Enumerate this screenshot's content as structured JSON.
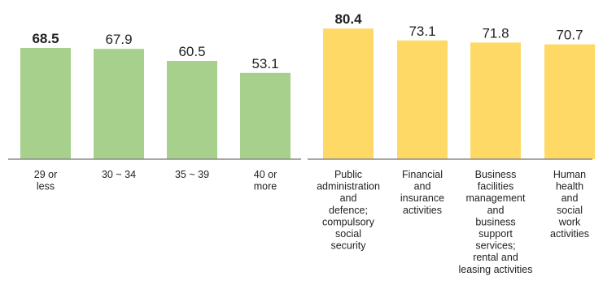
{
  "chart_data": [
    {
      "type": "bar",
      "categories": [
        [
          "29 or",
          "less"
        ],
        [
          "30 ~ 34"
        ],
        [
          "35 ~ 39"
        ],
        [
          "40 or",
          "more"
        ]
      ],
      "values": [
        68.5,
        67.9,
        60.5,
        53.1
      ],
      "value_labels": [
        "68.5",
        "67.9",
        "60.5",
        "53.1"
      ],
      "bold_index": 0,
      "color": "#a8d08d",
      "ylim": [
        0,
        100
      ]
    },
    {
      "type": "bar",
      "categories": [
        [
          "Public",
          "administration",
          "and",
          "defence;",
          "compulsory",
          "social",
          "security"
        ],
        [
          "Financial",
          "and",
          "insurance",
          "activities"
        ],
        [
          "Business",
          "facilities",
          "management",
          "and",
          "business",
          "support",
          "services;",
          "rental and",
          "leasing activities"
        ],
        [
          "Human",
          "health",
          "and",
          "social",
          "work",
          "activities"
        ]
      ],
      "values": [
        80.4,
        73.1,
        71.8,
        70.7
      ],
      "value_labels": [
        "80.4",
        "73.1",
        "71.8",
        "70.7"
      ],
      "bold_index": 0,
      "color": "#ffd966",
      "ylim": [
        0,
        100
      ]
    }
  ]
}
